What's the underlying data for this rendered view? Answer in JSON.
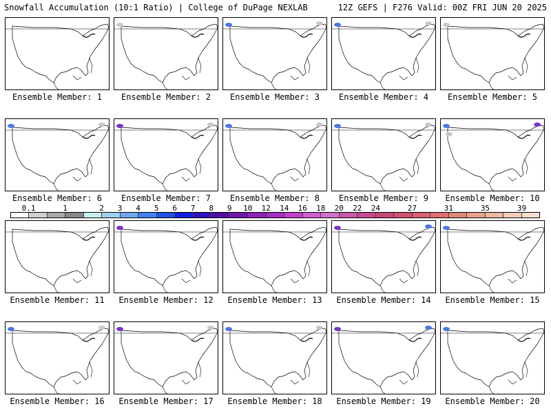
{
  "header": {
    "left_title": "Snowfall Accumulation (10:1 Ratio) | College of DuPage NEXLAB",
    "right_title": "12Z GEFS | F276 Valid: 00Z FRI JUN 20 2025"
  },
  "panels": [
    {
      "label": "Ensemble Member: 1",
      "snow_spots": []
    },
    {
      "label": "Ensemble Member: 2",
      "snow_spots": [
        "grey"
      ]
    },
    {
      "label": "Ensemble Member: 3",
      "snow_spots": [
        "blue",
        "grey"
      ]
    },
    {
      "label": "Ensemble Member: 4",
      "snow_spots": [
        "blue",
        "grey"
      ]
    },
    {
      "label": "Ensemble Member: 5",
      "snow_spots": [
        "grey"
      ]
    },
    {
      "label": "Ensemble Member: 6",
      "snow_spots": [
        "blue",
        "grey"
      ]
    },
    {
      "label": "Ensemble Member: 7",
      "snow_spots": [
        "purple",
        "grey"
      ]
    },
    {
      "label": "Ensemble Member: 8",
      "snow_spots": [
        "blue",
        "grey"
      ]
    },
    {
      "label": "Ensemble Member: 9",
      "snow_spots": [
        "blue",
        "grey"
      ]
    },
    {
      "label": "Ensemble Member: 10",
      "snow_spots": [
        "blue",
        "purple",
        "grey"
      ]
    },
    {
      "label": "Ensemble Member: 11",
      "snow_spots": []
    },
    {
      "label": "Ensemble Member: 12",
      "snow_spots": [
        "purple"
      ]
    },
    {
      "label": "Ensemble Member: 13",
      "snow_spots": []
    },
    {
      "label": "Ensemble Member: 14",
      "snow_spots": [
        "purple",
        "blue"
      ]
    },
    {
      "label": "Ensemble Member: 15",
      "snow_spots": [
        "blue"
      ]
    },
    {
      "label": "Ensemble Member: 16",
      "snow_spots": [
        "blue",
        "grey"
      ]
    },
    {
      "label": "Ensemble Member: 17",
      "snow_spots": [
        "purple",
        "grey"
      ]
    },
    {
      "label": "Ensemble Member: 18",
      "snow_spots": [
        "blue",
        "grey"
      ]
    },
    {
      "label": "Ensemble Member: 19",
      "snow_spots": [
        "purple",
        "blue"
      ]
    },
    {
      "label": "Ensemble Member: 20",
      "snow_spots": [
        "blue"
      ]
    }
  ],
  "colorbar": {
    "labels": [
      "0.1",
      "1",
      "2",
      "3",
      "4",
      "5",
      "6",
      "7",
      "8",
      "9",
      "10",
      "12",
      "14",
      "16",
      "18",
      "20",
      "22",
      "24",
      "27",
      "31",
      "35",
      "39"
    ],
    "colors": [
      "#ffffff",
      "#d0d0d0",
      "#a8a8a8",
      "#888888",
      "#c8f0f0",
      "#a0d0f0",
      "#70a8f0",
      "#4080f0",
      "#2050e8",
      "#1020e0",
      "#3010c0",
      "#5010a8",
      "#7018b0",
      "#9020b8",
      "#a030c0",
      "#c040c8",
      "#d060d0",
      "#d070c8",
      "#c858a8",
      "#c84890",
      "#c84878",
      "#d05070",
      "#d86070",
      "#e07070",
      "#e08878",
      "#e8a088",
      "#f0b8a0",
      "#f5ccb8",
      "#f8e0d0"
    ]
  }
}
